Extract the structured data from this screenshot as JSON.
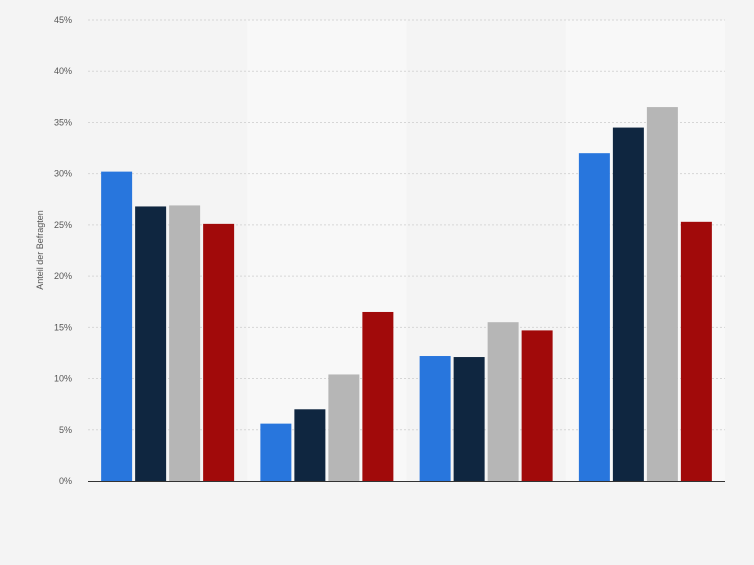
{
  "chart_data": {
    "type": "bar",
    "title": "",
    "xlabel": "",
    "ylabel": "Anteil der Befragten",
    "ylim": [
      0,
      45
    ],
    "yticks": [
      "0%",
      "5%",
      "10%",
      "15%",
      "20%",
      "25%",
      "30%",
      "35%",
      "40%",
      "45%"
    ],
    "grid": true,
    "legend": "none",
    "categories": [
      "",
      "",
      "",
      ""
    ],
    "series": [
      {
        "color": "#2876dd",
        "values": [
          30.2,
          5.6,
          12.2,
          32.0
        ]
      },
      {
        "color": "#0f2640",
        "values": [
          26.8,
          7.0,
          12.1,
          34.5
        ]
      },
      {
        "color": "#b6b6b6",
        "values": [
          26.9,
          10.4,
          15.5,
          36.5
        ]
      },
      {
        "color": "#a10a0a",
        "values": [
          25.1,
          16.5,
          14.7,
          25.3
        ]
      }
    ],
    "group_band_colors": [
      "#f4f4f4",
      "#f8f8f8",
      "#f4f4f4",
      "#f8f8f8"
    ]
  }
}
